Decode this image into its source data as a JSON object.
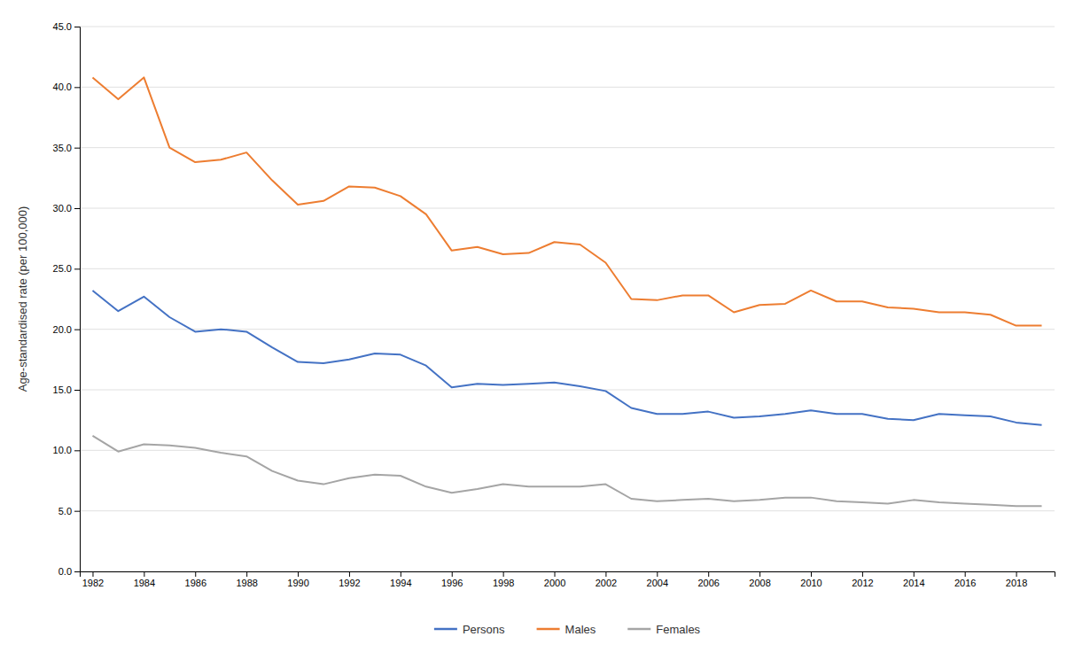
{
  "chart_data": {
    "type": "line",
    "ylabel": "Age-standardised rate (per 100,000)",
    "x": [
      1982,
      1983,
      1984,
      1985,
      1986,
      1987,
      1988,
      1989,
      1990,
      1991,
      1992,
      1993,
      1994,
      1995,
      1996,
      1997,
      1998,
      1999,
      2000,
      2001,
      2002,
      2003,
      2004,
      2005,
      2006,
      2007,
      2008,
      2009,
      2010,
      2011,
      2012,
      2013,
      2014,
      2015,
      2016,
      2017,
      2018,
      2019
    ],
    "series": [
      {
        "name": "Persons",
        "color": "#4472C4",
        "values": [
          23.2,
          21.5,
          22.7,
          21.0,
          19.8,
          20.0,
          19.8,
          18.5,
          17.3,
          17.2,
          17.5,
          18.0,
          17.9,
          17.0,
          15.2,
          15.5,
          15.4,
          15.5,
          15.6,
          15.3,
          14.9,
          13.5,
          13.0,
          13.0,
          13.2,
          12.7,
          12.8,
          13.0,
          13.3,
          13.0,
          13.0,
          12.6,
          12.5,
          13.0,
          12.9,
          12.8,
          12.3,
          12.1
        ]
      },
      {
        "name": "Males",
        "color": "#ED7D31",
        "values": [
          40.8,
          39.0,
          40.8,
          35.0,
          33.8,
          34.0,
          34.6,
          32.3,
          30.3,
          30.6,
          31.8,
          31.7,
          31.0,
          29.5,
          26.5,
          26.8,
          26.2,
          26.3,
          27.2,
          27.0,
          25.5,
          22.5,
          22.4,
          22.8,
          22.8,
          21.4,
          22.0,
          22.1,
          23.2,
          22.3,
          22.3,
          21.8,
          21.7,
          21.4,
          21.4,
          21.2,
          20.3,
          20.3
        ]
      },
      {
        "name": "Females",
        "color": "#A5A5A5",
        "values": [
          11.2,
          9.9,
          10.5,
          10.4,
          10.2,
          9.8,
          9.5,
          8.3,
          7.5,
          7.2,
          7.7,
          8.0,
          7.9,
          7.0,
          6.5,
          6.8,
          7.2,
          7.0,
          7.0,
          7.0,
          7.2,
          6.0,
          5.8,
          5.9,
          6.0,
          5.8,
          5.9,
          6.1,
          6.1,
          5.8,
          5.7,
          5.6,
          5.9,
          5.7,
          5.6,
          5.5,
          5.4,
          5.4
        ]
      }
    ],
    "xlim": [
      1981.5,
      2019.5
    ],
    "xticks": [
      1982,
      1984,
      1986,
      1988,
      1990,
      1992,
      1994,
      1996,
      1998,
      2000,
      2002,
      2004,
      2006,
      2008,
      2010,
      2012,
      2014,
      2016,
      2018
    ],
    "ylim": [
      0,
      45
    ],
    "yticks": [
      {
        "value": 0.0,
        "label": "0.0"
      },
      {
        "value": 5.0,
        "label": "5.0"
      },
      {
        "value": 10.0,
        "label": "10.0"
      },
      {
        "value": 15.0,
        "label": "15.0"
      },
      {
        "value": 20.0,
        "label": "20.0"
      },
      {
        "value": 25.0,
        "label": "25.0"
      },
      {
        "value": 30.0,
        "label": "30.0"
      },
      {
        "value": 35.0,
        "label": "35.0"
      },
      {
        "value": 40.0,
        "label": "40.0"
      },
      {
        "value": 45.0,
        "label": "45.0"
      }
    ],
    "grid": true,
    "legend": "bottom"
  }
}
